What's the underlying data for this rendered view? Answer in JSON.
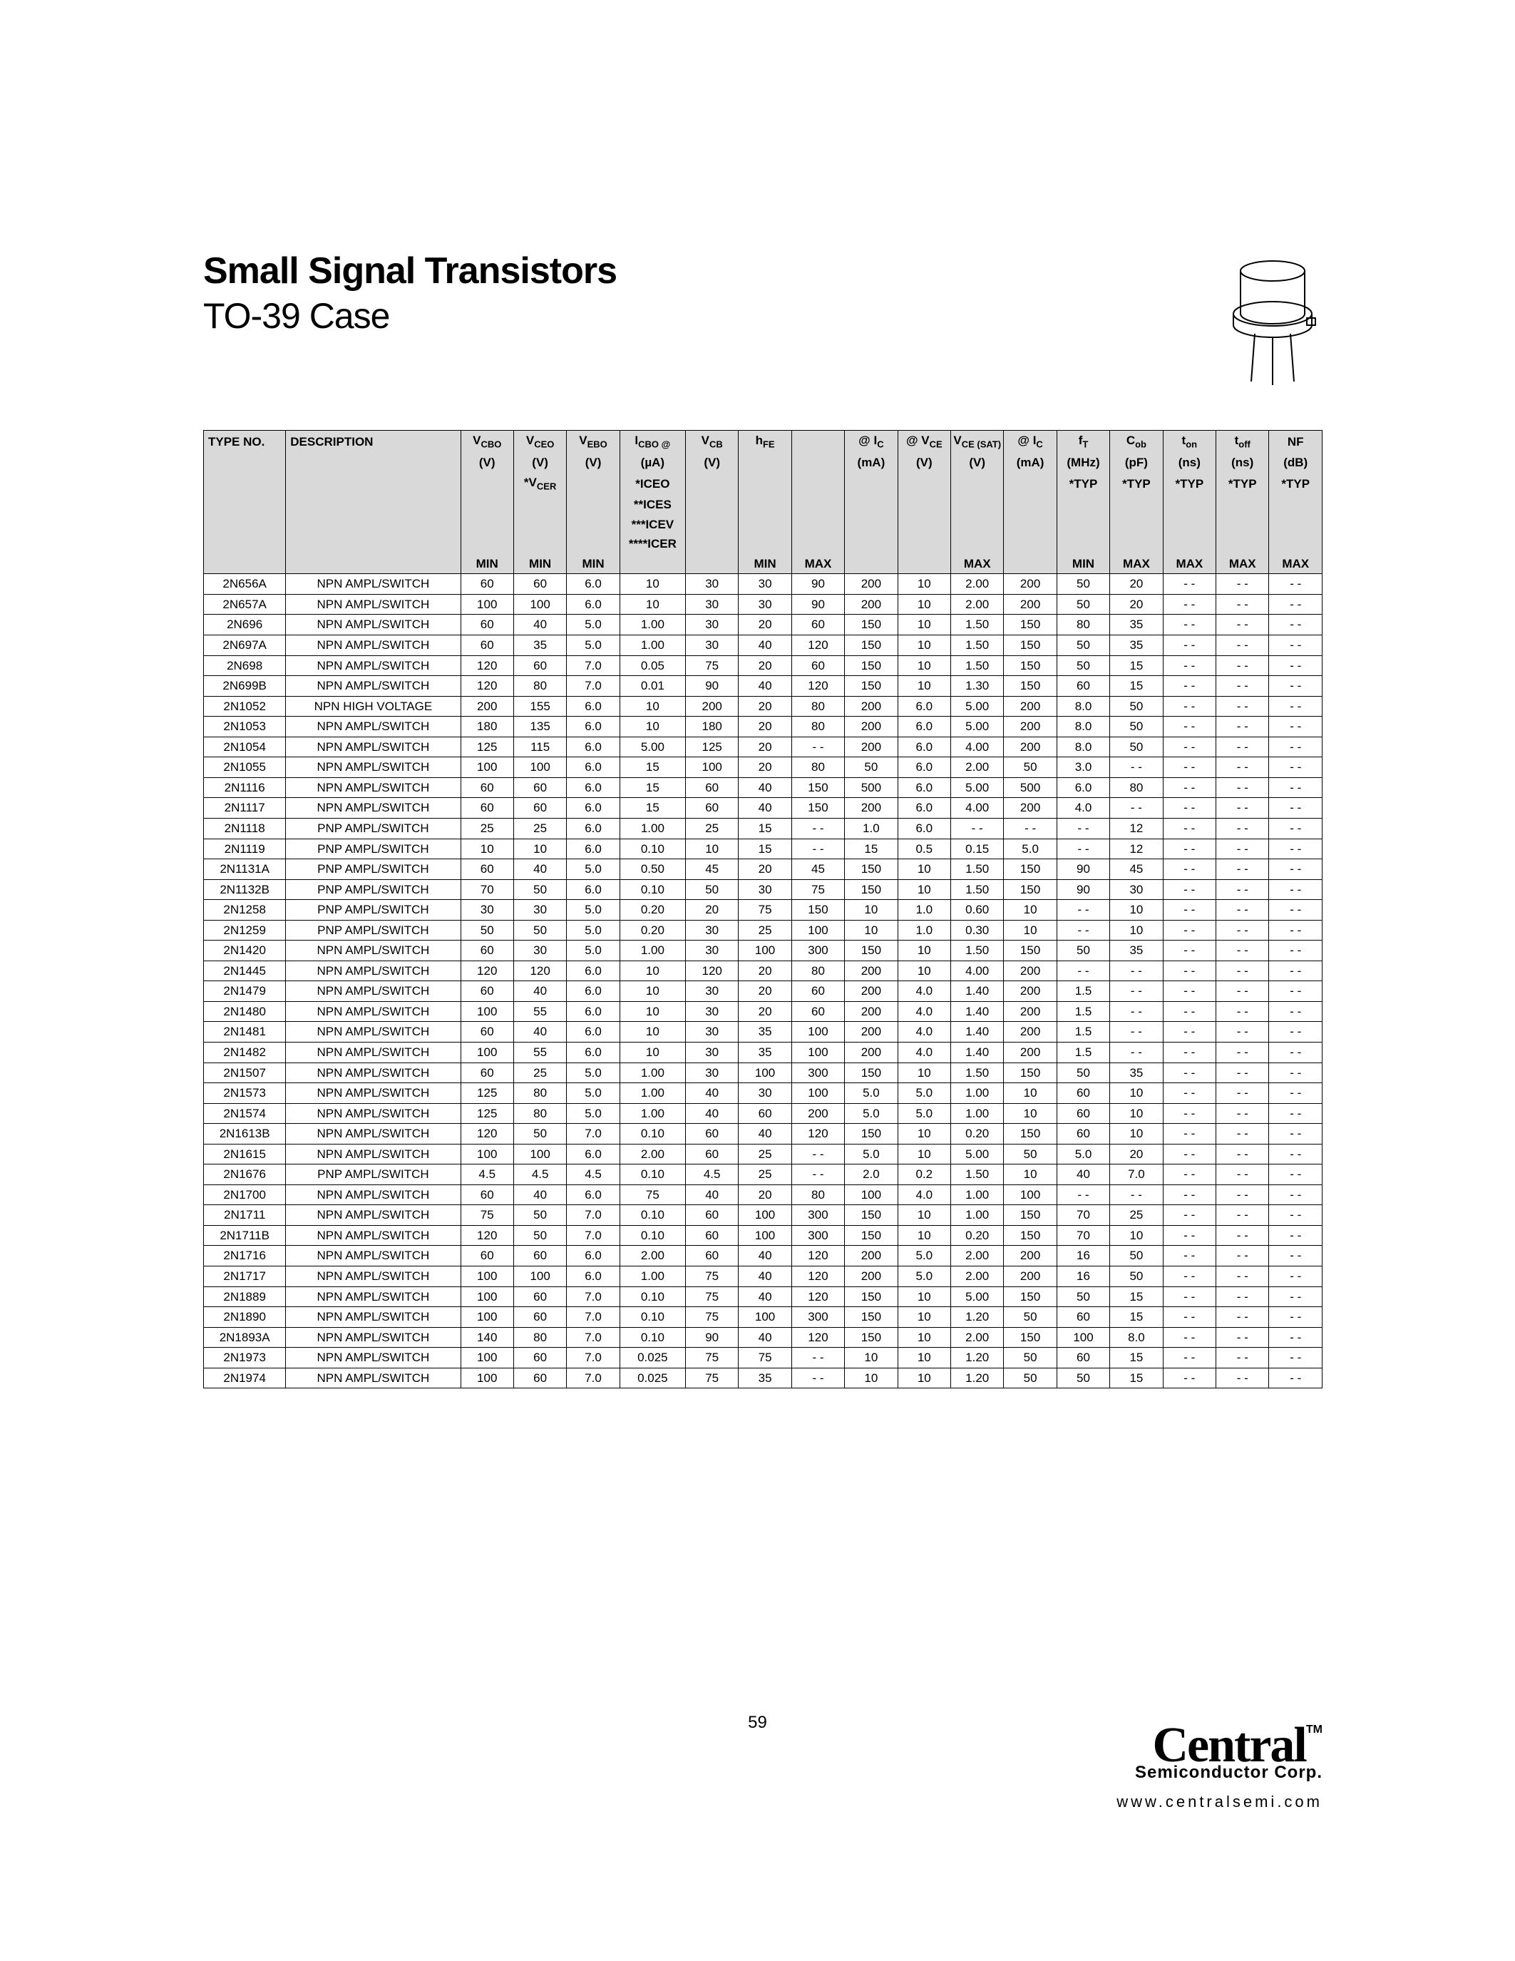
{
  "title": "Small Signal Transistors",
  "subtitle": "TO-39 Case",
  "page_number": "59",
  "logo": {
    "main": "Central",
    "tm": "TM",
    "sub": "Semiconductor Corp.",
    "url": "www.centralsemi.com"
  },
  "header": {
    "r1": [
      "TYPE NO.",
      "DESCRIPTION",
      "V",
      "V",
      "V",
      "I",
      "V",
      "h",
      "",
      "@ I",
      "@ V",
      "V",
      "@ I",
      "f",
      "C",
      "t",
      "t",
      "NF"
    ],
    "r1sub": [
      "",
      "",
      "CBO",
      "CEO",
      "EBO",
      "CBO @",
      "CB",
      "FE",
      "",
      "C",
      "CE",
      "CE (SAT)",
      "C",
      "T",
      "ob",
      "on",
      "off",
      ""
    ],
    "r2": [
      "",
      "",
      "(V)",
      "(V)",
      "(V)",
      "(µA)",
      "(V)",
      "",
      "",
      "(mA)",
      "(V)",
      "(V)",
      "(mA)",
      "(MHz)",
      "(pF)",
      "(ns)",
      "(ns)",
      "(dB)"
    ],
    "r3": [
      "",
      "",
      "",
      "*V",
      "",
      "*ICEO",
      "",
      "",
      "",
      "",
      "",
      "",
      "",
      "*TYP",
      "*TYP",
      "*TYP",
      "*TYP",
      "*TYP"
    ],
    "r3b": [
      "",
      "",
      "",
      "CER",
      "",
      "**ICES",
      "",
      "",
      "",
      "",
      "",
      "",
      "",
      "",
      "",
      "",
      "",
      ""
    ],
    "r3c": [
      "",
      "",
      "",
      "",
      "",
      "***ICEV",
      "",
      "",
      "",
      "",
      "",
      "",
      "",
      "",
      "",
      "",
      "",
      ""
    ],
    "r3d": [
      "",
      "",
      "",
      "",
      "",
      "****ICER",
      "",
      "",
      "",
      "",
      "",
      "",
      "",
      "",
      "",
      "",
      "",
      ""
    ],
    "r4": [
      "",
      "",
      "MIN",
      "MIN",
      "MIN",
      "",
      "",
      "MIN",
      "MAX",
      "",
      "",
      "MAX",
      "",
      "MIN",
      "MAX",
      "MAX",
      "MAX",
      "MAX"
    ]
  },
  "rows": [
    [
      "2N656A",
      "NPN AMPL/SWITCH",
      "60",
      "60",
      "6.0",
      "10",
      "30",
      "30",
      "90",
      "200",
      "10",
      "2.00",
      "200",
      "50",
      "20",
      "- -",
      "- -",
      "- -"
    ],
    [
      "2N657A",
      "NPN AMPL/SWITCH",
      "100",
      "100",
      "6.0",
      "10",
      "30",
      "30",
      "90",
      "200",
      "10",
      "2.00",
      "200",
      "50",
      "20",
      "- -",
      "- -",
      "- -"
    ],
    [
      "2N696",
      "NPN AMPL/SWITCH",
      "60",
      "40",
      "5.0",
      "1.00",
      "30",
      "20",
      "60",
      "150",
      "10",
      "1.50",
      "150",
      "80",
      "35",
      "- -",
      "- -",
      "- -"
    ],
    [
      "2N697A",
      "NPN AMPL/SWITCH",
      "60",
      "35",
      "5.0",
      "1.00",
      "30",
      "40",
      "120",
      "150",
      "10",
      "1.50",
      "150",
      "50",
      "35",
      "- -",
      "- -",
      "- -"
    ],
    [
      "2N698",
      "NPN AMPL/SWITCH",
      "120",
      "60",
      "7.0",
      "0.05",
      "75",
      "20",
      "60",
      "150",
      "10",
      "1.50",
      "150",
      "50",
      "15",
      "- -",
      "- -",
      "- -"
    ],
    [
      "2N699B",
      "NPN AMPL/SWITCH",
      "120",
      "80",
      "7.0",
      "0.01",
      "90",
      "40",
      "120",
      "150",
      "10",
      "1.30",
      "150",
      "60",
      "15",
      "- -",
      "- -",
      "- -"
    ],
    [
      "2N1052",
      "NPN HIGH VOLTAGE",
      "200",
      "155",
      "6.0",
      "10",
      "200",
      "20",
      "80",
      "200",
      "6.0",
      "5.00",
      "200",
      "8.0",
      "50",
      "- -",
      "- -",
      "- -"
    ],
    [
      "2N1053",
      "NPN AMPL/SWITCH",
      "180",
      "135",
      "6.0",
      "10",
      "180",
      "20",
      "80",
      "200",
      "6.0",
      "5.00",
      "200",
      "8.0",
      "50",
      "- -",
      "- -",
      "- -"
    ],
    [
      "2N1054",
      "NPN AMPL/SWITCH",
      "125",
      "115",
      "6.0",
      "5.00",
      "125",
      "20",
      "- -",
      "200",
      "6.0",
      "4.00",
      "200",
      "8.0",
      "50",
      "- -",
      "- -",
      "- -"
    ],
    [
      "2N1055",
      "NPN AMPL/SWITCH",
      "100",
      "100",
      "6.0",
      "15",
      "100",
      "20",
      "80",
      "50",
      "6.0",
      "2.00",
      "50",
      "3.0",
      "- -",
      "- -",
      "- -",
      "- -"
    ],
    [
      "2N1116",
      "NPN AMPL/SWITCH",
      "60",
      "60",
      "6.0",
      "15",
      "60",
      "40",
      "150",
      "500",
      "6.0",
      "5.00",
      "500",
      "6.0",
      "80",
      "- -",
      "- -",
      "- -"
    ],
    [
      "2N1117",
      "NPN AMPL/SWITCH",
      "60",
      "60",
      "6.0",
      "15",
      "60",
      "40",
      "150",
      "200",
      "6.0",
      "4.00",
      "200",
      "4.0",
      "- -",
      "- -",
      "- -",
      "- -"
    ],
    [
      "2N1118",
      "PNP AMPL/SWITCH",
      "25",
      "25",
      "6.0",
      "1.00",
      "25",
      "15",
      "- -",
      "1.0",
      "6.0",
      "- -",
      "- -",
      "- -",
      "12",
      "- -",
      "- -",
      "- -"
    ],
    [
      "2N1119",
      "PNP AMPL/SWITCH",
      "10",
      "10",
      "6.0",
      "0.10",
      "10",
      "15",
      "- -",
      "15",
      "0.5",
      "0.15",
      "5.0",
      "- -",
      "12",
      "- -",
      "- -",
      "- -"
    ],
    [
      "2N1131A",
      "PNP AMPL/SWITCH",
      "60",
      "40",
      "5.0",
      "0.50",
      "45",
      "20",
      "45",
      "150",
      "10",
      "1.50",
      "150",
      "90",
      "45",
      "- -",
      "- -",
      "- -"
    ],
    [
      "2N1132B",
      "PNP AMPL/SWITCH",
      "70",
      "50",
      "6.0",
      "0.10",
      "50",
      "30",
      "75",
      "150",
      "10",
      "1.50",
      "150",
      "90",
      "30",
      "- -",
      "- -",
      "- -"
    ],
    [
      "2N1258",
      "PNP AMPL/SWITCH",
      "30",
      "30",
      "5.0",
      "0.20",
      "20",
      "75",
      "150",
      "10",
      "1.0",
      "0.60",
      "10",
      "- -",
      "10",
      "- -",
      "- -",
      "- -"
    ],
    [
      "2N1259",
      "PNP AMPL/SWITCH",
      "50",
      "50",
      "5.0",
      "0.20",
      "30",
      "25",
      "100",
      "10",
      "1.0",
      "0.30",
      "10",
      "- -",
      "10",
      "- -",
      "- -",
      "- -"
    ],
    [
      "2N1420",
      "NPN AMPL/SWITCH",
      "60",
      "30",
      "5.0",
      "1.00",
      "30",
      "100",
      "300",
      "150",
      "10",
      "1.50",
      "150",
      "50",
      "35",
      "- -",
      "- -",
      "- -"
    ],
    [
      "2N1445",
      "NPN AMPL/SWITCH",
      "120",
      "120",
      "6.0",
      "10",
      "120",
      "20",
      "80",
      "200",
      "10",
      "4.00",
      "200",
      "- -",
      "- -",
      "- -",
      "- -",
      "- -"
    ],
    [
      "2N1479",
      "NPN AMPL/SWITCH",
      "60",
      "40",
      "6.0",
      "10",
      "30",
      "20",
      "60",
      "200",
      "4.0",
      "1.40",
      "200",
      "1.5",
      "- -",
      "- -",
      "- -",
      "- -"
    ],
    [
      "2N1480",
      "NPN AMPL/SWITCH",
      "100",
      "55",
      "6.0",
      "10",
      "30",
      "20",
      "60",
      "200",
      "4.0",
      "1.40",
      "200",
      "1.5",
      "- -",
      "- -",
      "- -",
      "- -"
    ],
    [
      "2N1481",
      "NPN AMPL/SWITCH",
      "60",
      "40",
      "6.0",
      "10",
      "30",
      "35",
      "100",
      "200",
      "4.0",
      "1.40",
      "200",
      "1.5",
      "- -",
      "- -",
      "- -",
      "- -"
    ],
    [
      "2N1482",
      "NPN AMPL/SWITCH",
      "100",
      "55",
      "6.0",
      "10",
      "30",
      "35",
      "100",
      "200",
      "4.0",
      "1.40",
      "200",
      "1.5",
      "- -",
      "- -",
      "- -",
      "- -"
    ],
    [
      "2N1507",
      "NPN AMPL/SWITCH",
      "60",
      "25",
      "5.0",
      "1.00",
      "30",
      "100",
      "300",
      "150",
      "10",
      "1.50",
      "150",
      "50",
      "35",
      "- -",
      "- -",
      "- -"
    ],
    [
      "2N1573",
      "NPN AMPL/SWITCH",
      "125",
      "80",
      "5.0",
      "1.00",
      "40",
      "30",
      "100",
      "5.0",
      "5.0",
      "1.00",
      "10",
      "60",
      "10",
      "- -",
      "- -",
      "- -"
    ],
    [
      "2N1574",
      "NPN AMPL/SWITCH",
      "125",
      "80",
      "5.0",
      "1.00",
      "40",
      "60",
      "200",
      "5.0",
      "5.0",
      "1.00",
      "10",
      "60",
      "10",
      "- -",
      "- -",
      "- -"
    ],
    [
      "2N1613B",
      "NPN AMPL/SWITCH",
      "120",
      "50",
      "7.0",
      "0.10",
      "60",
      "40",
      "120",
      "150",
      "10",
      "0.20",
      "150",
      "60",
      "10",
      "- -",
      "- -",
      "- -"
    ],
    [
      "2N1615",
      "NPN AMPL/SWITCH",
      "100",
      "100",
      "6.0",
      "2.00",
      "60",
      "25",
      "- -",
      "5.0",
      "10",
      "5.00",
      "50",
      "5.0",
      "20",
      "- -",
      "- -",
      "- -"
    ],
    [
      "2N1676",
      "PNP AMPL/SWITCH",
      "4.5",
      "4.5",
      "4.5",
      "0.10",
      "4.5",
      "25",
      "- -",
      "2.0",
      "0.2",
      "1.50",
      "10",
      "40",
      "7.0",
      "- -",
      "- -",
      "- -"
    ],
    [
      "2N1700",
      "NPN AMPL/SWITCH",
      "60",
      "40",
      "6.0",
      "75",
      "40",
      "20",
      "80",
      "100",
      "4.0",
      "1.00",
      "100",
      "- -",
      "- -",
      "- -",
      "- -",
      "- -"
    ],
    [
      "2N1711",
      "NPN AMPL/SWITCH",
      "75",
      "50",
      "7.0",
      "0.10",
      "60",
      "100",
      "300",
      "150",
      "10",
      "1.00",
      "150",
      "70",
      "25",
      "- -",
      "- -",
      "- -"
    ],
    [
      "2N1711B",
      "NPN AMPL/SWITCH",
      "120",
      "50",
      "7.0",
      "0.10",
      "60",
      "100",
      "300",
      "150",
      "10",
      "0.20",
      "150",
      "70",
      "10",
      "- -",
      "- -",
      "- -"
    ],
    [
      "2N1716",
      "NPN AMPL/SWITCH",
      "60",
      "60",
      "6.0",
      "2.00",
      "60",
      "40",
      "120",
      "200",
      "5.0",
      "2.00",
      "200",
      "16",
      "50",
      "- -",
      "- -",
      "- -"
    ],
    [
      "2N1717",
      "NPN AMPL/SWITCH",
      "100",
      "100",
      "6.0",
      "1.00",
      "75",
      "40",
      "120",
      "200",
      "5.0",
      "2.00",
      "200",
      "16",
      "50",
      "- -",
      "- -",
      "- -"
    ],
    [
      "2N1889",
      "NPN AMPL/SWITCH",
      "100",
      "60",
      "7.0",
      "0.10",
      "75",
      "40",
      "120",
      "150",
      "10",
      "5.00",
      "150",
      "50",
      "15",
      "- -",
      "- -",
      "- -"
    ],
    [
      "2N1890",
      "NPN AMPL/SWITCH",
      "100",
      "60",
      "7.0",
      "0.10",
      "75",
      "100",
      "300",
      "150",
      "10",
      "1.20",
      "50",
      "60",
      "15",
      "- -",
      "- -",
      "- -"
    ],
    [
      "2N1893A",
      "NPN AMPL/SWITCH",
      "140",
      "80",
      "7.0",
      "0.10",
      "90",
      "40",
      "120",
      "150",
      "10",
      "2.00",
      "150",
      "100",
      "8.0",
      "- -",
      "- -",
      "- -"
    ],
    [
      "2N1973",
      "NPN AMPL/SWITCH",
      "100",
      "60",
      "7.0",
      "0.025",
      "75",
      "75",
      "- -",
      "10",
      "10",
      "1.20",
      "50",
      "60",
      "15",
      "- -",
      "- -",
      "- -"
    ],
    [
      "2N1974",
      "NPN AMPL/SWITCH",
      "100",
      "60",
      "7.0",
      "0.025",
      "75",
      "35",
      "- -",
      "10",
      "10",
      "1.20",
      "50",
      "50",
      "15",
      "- -",
      "- -",
      "- -"
    ]
  ]
}
